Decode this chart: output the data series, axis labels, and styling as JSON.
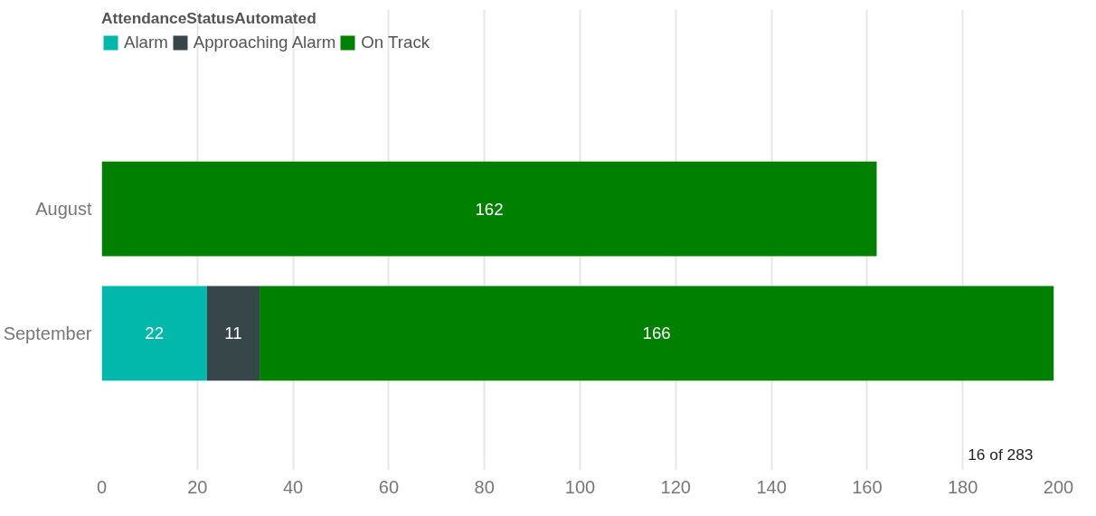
{
  "chart_data": {
    "type": "bar",
    "orientation": "horizontal",
    "stacked": true,
    "legend_title": "AttendanceStatusAutomated",
    "legend": "top left",
    "categories": [
      "August",
      "September"
    ],
    "series": [
      {
        "name": "Alarm",
        "color": "#01b8aa",
        "values": [
          null,
          22
        ]
      },
      {
        "name": "Approaching Alarm",
        "color": "#374649",
        "values": [
          null,
          11
        ]
      },
      {
        "name": "On Track",
        "color": "#008000",
        "values": [
          162,
          166
        ]
      }
    ],
    "xlim": [
      0,
      200
    ],
    "xticks": [
      0,
      20,
      40,
      60,
      80,
      100,
      120,
      140,
      160,
      180,
      200
    ],
    "grid": "x",
    "data_labels": true,
    "annotations": [
      "16 of 283"
    ]
  }
}
